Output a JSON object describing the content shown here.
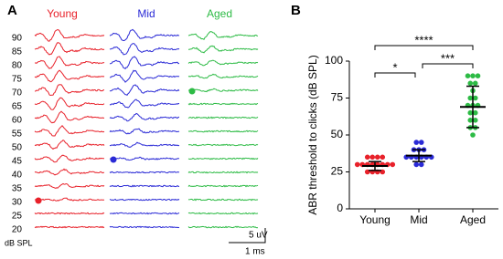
{
  "chart_data": [
    {
      "type": "abr",
      "panel": "A",
      "levels": [
        90,
        85,
        80,
        75,
        70,
        65,
        60,
        55,
        50,
        45,
        40,
        35,
        30,
        25,
        20
      ],
      "level_unit": "dB SPL",
      "groups": [
        {
          "name": "Young",
          "color": "#e8212a",
          "threshold": 30
        },
        {
          "name": "Mid",
          "color": "#2a2ad6",
          "threshold": 45
        },
        {
          "name": "Aged",
          "color": "#2dbb45",
          "threshold": 70
        }
      ],
      "scale_bar": {
        "amplitude": "5 uV",
        "time": "1 ms"
      }
    },
    {
      "type": "scatter",
      "panel": "B",
      "ylabel": "ABR threshold to clicks (dB SPL)",
      "categories": [
        "Young",
        "Mid",
        "Aged"
      ],
      "ylim": [
        0,
        100
      ],
      "yticks": [
        0,
        25,
        50,
        75,
        100
      ],
      "series": [
        {
          "name": "Young",
          "color": "#e8212a",
          "values": [
            25,
            25,
            25,
            25,
            30,
            30,
            30,
            30,
            30,
            30,
            30,
            30,
            35,
            35,
            35,
            35
          ],
          "mean": 29,
          "sd": 3
        },
        {
          "name": "Mid",
          "color": "#2a2ad6",
          "values": [
            30,
            30,
            35,
            35,
            35,
            35,
            35,
            35,
            40,
            40,
            40,
            45,
            45
          ],
          "mean": 36,
          "sd": 4
        },
        {
          "name": "Aged",
          "color": "#2dbb45",
          "values": [
            50,
            55,
            55,
            60,
            60,
            65,
            65,
            70,
            70,
            70,
            75,
            75,
            80,
            85,
            85,
            90,
            90,
            90
          ],
          "mean": 69,
          "sd": 14
        }
      ],
      "annotations": [
        "****",
        "*",
        "***"
      ]
    }
  ]
}
